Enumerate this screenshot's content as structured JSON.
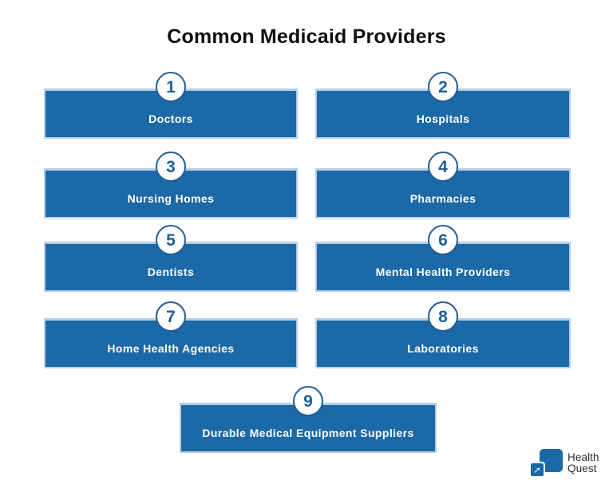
{
  "title": "Common Medicaid Providers",
  "providers": [
    {
      "number": "1",
      "label": "Doctors"
    },
    {
      "number": "2",
      "label": "Hospitals"
    },
    {
      "number": "3",
      "label": "Nursing Homes"
    },
    {
      "number": "4",
      "label": "Pharmacies"
    },
    {
      "number": "5",
      "label": "Dentists"
    },
    {
      "number": "6",
      "label": "Mental Health Providers"
    },
    {
      "number": "7",
      "label": "Home Health Agencies"
    },
    {
      "number": "8",
      "label": "Laboratories"
    },
    {
      "number": "9",
      "label": "Durable Medical Equipment Suppliers"
    }
  ],
  "logo": {
    "line1": "Health",
    "line2": "Quest",
    "arrow_icon": "➚"
  },
  "colors": {
    "primary_blue": "#1b69a6",
    "card_border_light": "#b5cee6",
    "badge_border": "#235d94",
    "badge_number": "#1f5f9b",
    "title_text": "#0f0f0f",
    "label_text": "#ffffff",
    "background": "#ffffff"
  }
}
